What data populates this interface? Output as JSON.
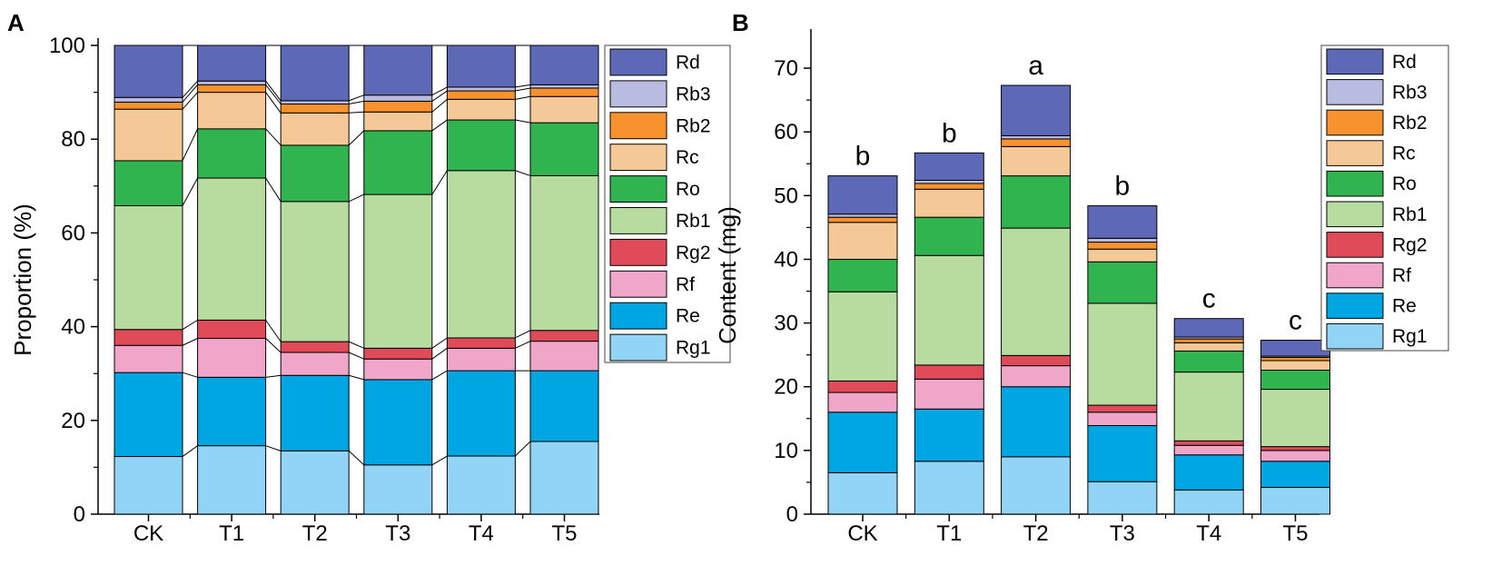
{
  "series_colors": {
    "Rg1": "#92d4f5",
    "Re": "#00a6e2",
    "Rf": "#f0a6c9",
    "Rg2": "#e04b5a",
    "Rb1": "#b8dba0",
    "Ro": "#2fb44f",
    "Rc": "#f5c898",
    "Rb2": "#f7922e",
    "Rb3": "#b9bbe0",
    "Rd": "#5d68b6"
  },
  "chart_data": [
    {
      "panel": "A",
      "type": "bar",
      "stacked": true,
      "ylabel": "Proportion (%)",
      "xlabel": "",
      "ylim": [
        0,
        100
      ],
      "yticks": [
        0,
        20,
        40,
        60,
        80,
        100
      ],
      "connectors": true,
      "categories": [
        "CK",
        "T1",
        "T2",
        "T3",
        "T4",
        "T5"
      ],
      "legend_position": "right",
      "legend": [
        "Rd",
        "Rb3",
        "Rb2",
        "Rc",
        "Ro",
        "Rb1",
        "Rg2",
        "Rf",
        "Re",
        "Rg1"
      ],
      "series": [
        {
          "name": "Rg1",
          "values": [
            12.3,
            14.6,
            13.5,
            10.5,
            12.4,
            15.5
          ]
        },
        {
          "name": "Re",
          "values": [
            17.9,
            14.6,
            16.1,
            18.2,
            18.2,
            15.1
          ]
        },
        {
          "name": "Rf",
          "values": [
            5.8,
            8.3,
            4.9,
            4.4,
            4.8,
            6.3
          ]
        },
        {
          "name": "Rg2",
          "values": [
            3.4,
            3.9,
            2.3,
            2.3,
            2.2,
            2.3
          ]
        },
        {
          "name": "Rb1",
          "values": [
            26.4,
            30.3,
            29.9,
            32.8,
            35.7,
            33.0
          ]
        },
        {
          "name": "Ro",
          "values": [
            9.6,
            10.5,
            12.0,
            13.6,
            10.8,
            11.3
          ]
        },
        {
          "name": "Rc",
          "values": [
            11.0,
            7.8,
            6.9,
            4.0,
            4.4,
            5.6
          ]
        },
        {
          "name": "Rb2",
          "values": [
            1.5,
            1.6,
            1.9,
            2.3,
            1.8,
            1.8
          ]
        },
        {
          "name": "Rb3",
          "values": [
            1.0,
            0.8,
            0.7,
            1.3,
            0.8,
            0.7
          ]
        },
        {
          "name": "Rd",
          "values": [
            11.1,
            7.6,
            11.8,
            10.6,
            8.9,
            8.4
          ]
        }
      ]
    },
    {
      "panel": "B",
      "type": "bar",
      "stacked": true,
      "ylabel": "Content (mg)",
      "xlabel": "",
      "ylim": [
        0,
        75
      ],
      "yticks": [
        0,
        10,
        20,
        30,
        40,
        50,
        60,
        70
      ],
      "connectors": false,
      "categories": [
        "CK",
        "T1",
        "T2",
        "T3",
        "T4",
        "T5"
      ],
      "significance": [
        "b",
        "b",
        "a",
        "b",
        "c",
        "c"
      ],
      "legend_position": "right",
      "legend": [
        "Rd",
        "Rb3",
        "Rb2",
        "Rc",
        "Ro",
        "Rb1",
        "Rg2",
        "Rf",
        "Re",
        "Rg1"
      ],
      "series": [
        {
          "name": "Rg1",
          "values": [
            6.5,
            8.3,
            9.0,
            5.1,
            3.8,
            4.2
          ]
        },
        {
          "name": "Re",
          "values": [
            9.5,
            8.2,
            11.0,
            8.8,
            5.5,
            4.1
          ]
        },
        {
          "name": "Rf",
          "values": [
            3.1,
            4.7,
            3.3,
            2.1,
            1.5,
            1.7
          ]
        },
        {
          "name": "Rg2",
          "values": [
            1.8,
            2.2,
            1.6,
            1.1,
            0.7,
            0.6
          ]
        },
        {
          "name": "Rb1",
          "values": [
            14.0,
            17.2,
            20.0,
            16.0,
            10.8,
            9.0
          ]
        },
        {
          "name": "Ro",
          "values": [
            5.1,
            6.0,
            8.2,
            6.5,
            3.3,
            3.0
          ]
        },
        {
          "name": "Rc",
          "values": [
            5.8,
            4.4,
            4.6,
            2.0,
            1.3,
            1.5
          ]
        },
        {
          "name": "Rb2",
          "values": [
            0.8,
            0.9,
            1.2,
            1.1,
            0.6,
            0.5
          ]
        },
        {
          "name": "Rb3",
          "values": [
            0.5,
            0.5,
            0.5,
            0.6,
            0.3,
            0.2
          ]
        },
        {
          "name": "Rd",
          "values": [
            6.0,
            4.3,
            7.9,
            5.1,
            2.9,
            2.5
          ]
        }
      ]
    }
  ]
}
